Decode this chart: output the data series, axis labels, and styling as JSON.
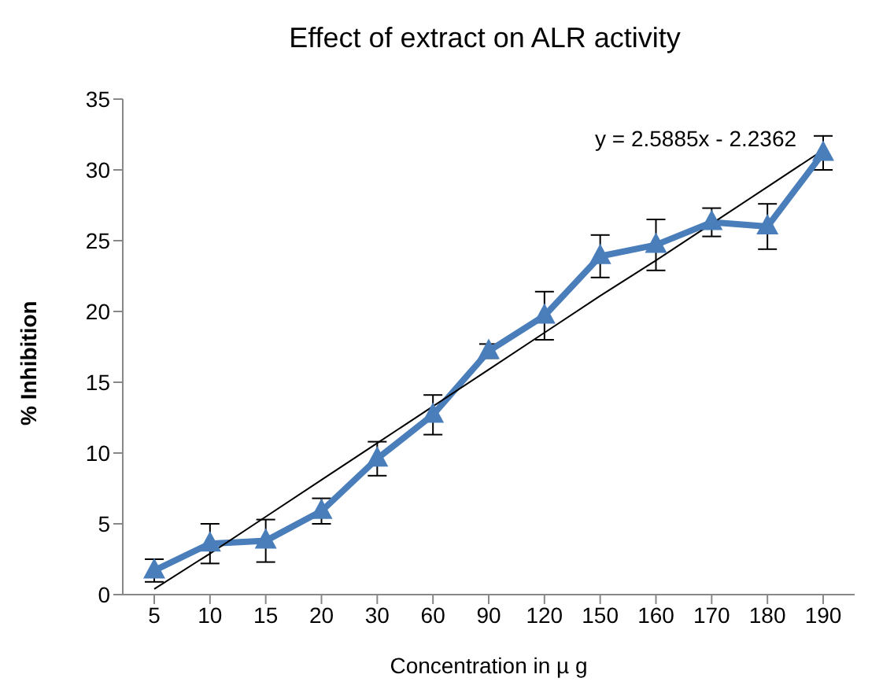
{
  "chart_data": {
    "type": "line",
    "title": "Effect of extract on ALR activity",
    "xlabel": "Concentration in µ g",
    "ylabel": "% Inhibition",
    "categories": [
      "5",
      "10",
      "15",
      "20",
      "30",
      "60",
      "90",
      "120",
      "150",
      "160",
      "170",
      "180",
      "190"
    ],
    "series": [
      {
        "color": "#4a7ebb",
        "values": [
          1.7,
          3.6,
          3.8,
          5.9,
          9.6,
          12.7,
          17.2,
          19.7,
          23.9,
          24.7,
          26.3,
          26.0,
          31.2
        ],
        "errors": [
          0.8,
          1.4,
          1.5,
          0.9,
          1.2,
          1.4,
          0.5,
          1.7,
          1.5,
          1.8,
          1.0,
          1.6,
          1.2
        ]
      },
      {
        "type": "line",
        "color": "#000000",
        "marker": "none",
        "values": [
          0.4,
          2.9,
          5.5,
          8.1,
          10.7,
          13.3,
          15.9,
          18.5,
          21.1,
          23.6,
          26.2,
          28.8,
          31.4
        ]
      }
    ],
    "annotations": [
      "y = 2.5885x - 2.2362"
    ],
    "ylim": [
      0,
      35
    ],
    "yticks": [
      0,
      5,
      10,
      15,
      20,
      25,
      30,
      35
    ],
    "grid": false,
    "marker": "triangle",
    "line_style": "solid"
  }
}
